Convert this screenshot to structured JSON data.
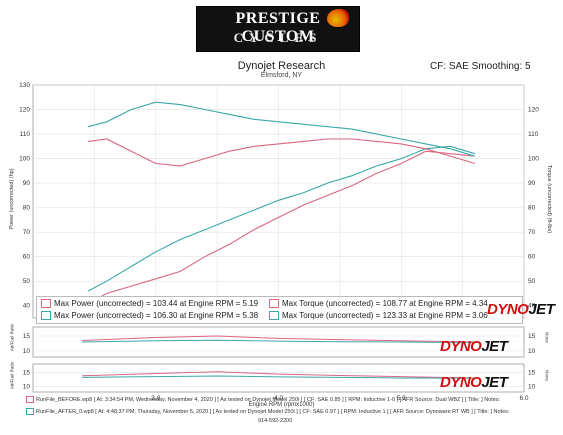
{
  "header": {
    "logo_line1": "PRESTIGE CUSTOM",
    "logo_line2": "CYCLES",
    "title": "Dynojet Research",
    "location": "Elmsford, NY",
    "cf_label": "CF: SAE Smoothing: 5"
  },
  "axes": {
    "y_left_label": "Power (uncorrected) (hp)",
    "y_right_label": "Torque (uncorrected) (ft-lbs)",
    "x_label": "Engine RPM (rpmx1000)",
    "afr_label": "Air/Fuel Ratio",
    "right_small_label": "None"
  },
  "legend": {
    "run1_power": "Max Power (uncorrected) = 103.44 at Engine RPM = 5.19",
    "run2_power": "Max Power (uncorrected) = 106.30 at Engine RPM = 5.38",
    "run1_torque": "Max Torque (uncorrected) = 108.77 at Engine RPM = 4.34",
    "run2_torque": "Max Torque (uncorrected) = 123.33 at Engine RPM = 3.06"
  },
  "brand": {
    "dyno": "DYNO",
    "jet": "JET"
  },
  "footer": {
    "run1": "RunFile_BEFORE.wp8 [ At: 3:34:54 PM, Wednesday, November 4, 2020 ] [ As tested on Dynojet Model 250i ] [ CF: SAE 0.85 ] [ RPM: Inductive 1-0 ] [ AFR Source: Dual WBZ ] [ Title: ] Notes:",
    "run2": "RunFile_AFTER_0.wp8 [ At: 4:48:37 PM, Thursday, November 5, 2020 ] [ As tested on Dynojet Model 250i ] [ CF: SAE 0.97 ] [ RPM: Inductive 1 ] [ AFR Source: Dynoware RT WB ] [ Title: ] Notes:",
    "phone": "914-592-2200"
  },
  "colors": {
    "run1": "#d9677f",
    "run2": "#3aa8a8",
    "grid": "#e2e2e2"
  },
  "chart_data": {
    "type": "line",
    "xlim": [
      2.0,
      6.0
    ],
    "y_left_lim": [
      35,
      130
    ],
    "y_left_ticks": [
      40,
      50,
      60,
      70,
      80,
      90,
      100,
      110,
      120,
      130
    ],
    "y_right_ticks": [
      40,
      50,
      60,
      70,
      80,
      90,
      100,
      110,
      120
    ],
    "x_ticks": [
      3.0,
      4.0,
      5.0,
      6.0
    ],
    "x_tick_labels": [
      "3.0",
      "4.0",
      "5.0",
      "6.0"
    ],
    "afr_ticks": [
      10,
      15
    ],
    "series": [
      {
        "run": 1,
        "quantity": "power",
        "x": [
          2.45,
          2.6,
          2.8,
          3.0,
          3.2,
          3.4,
          3.6,
          3.8,
          4.0,
          4.2,
          4.4,
          4.6,
          4.8,
          5.0,
          5.2,
          5.4,
          5.6
        ],
        "y": [
          41,
          45,
          48,
          51,
          54,
          60,
          65,
          71,
          76,
          81,
          85,
          89,
          94,
          98,
          103,
          102,
          101
        ]
      },
      {
        "run": 2,
        "quantity": "power",
        "x": [
          2.45,
          2.6,
          2.8,
          3.0,
          3.2,
          3.4,
          3.6,
          3.8,
          4.0,
          4.2,
          4.4,
          4.6,
          4.8,
          5.0,
          5.2,
          5.4,
          5.6
        ],
        "y": [
          46,
          50,
          56,
          62,
          67,
          71,
          75,
          79,
          83,
          86,
          90,
          93,
          97,
          100,
          104,
          105,
          102
        ]
      },
      {
        "run": 1,
        "quantity": "torque",
        "x": [
          2.45,
          2.6,
          2.8,
          3.0,
          3.2,
          3.4,
          3.6,
          3.8,
          4.0,
          4.2,
          4.4,
          4.6,
          4.8,
          5.0,
          5.2,
          5.4,
          5.6
        ],
        "y": [
          107,
          108,
          103,
          98,
          97,
          100,
          103,
          105,
          106,
          107,
          108,
          108,
          107,
          106,
          104,
          101,
          98
        ]
      },
      {
        "run": 2,
        "quantity": "torque",
        "x": [
          2.45,
          2.6,
          2.8,
          3.0,
          3.2,
          3.4,
          3.6,
          3.8,
          4.0,
          4.2,
          4.4,
          4.6,
          4.8,
          5.0,
          5.2,
          5.4,
          5.6
        ],
        "y": [
          113,
          115,
          120,
          123,
          122,
          120,
          118,
          116,
          115,
          114,
          113,
          112,
          110,
          108,
          106,
          104,
          101
        ]
      }
    ],
    "afr_series": [
      {
        "panel": 1,
        "run": 1,
        "x": [
          2.4,
          3.0,
          3.5,
          4.0,
          4.5,
          5.0,
          5.6
        ],
        "y": [
          13.5,
          14.5,
          15.0,
          14.2,
          13.8,
          13.4,
          13.0
        ]
      },
      {
        "panel": 1,
        "run": 2,
        "x": [
          2.4,
          3.0,
          3.5,
          4.0,
          4.5,
          5.0,
          5.6
        ],
        "y": [
          13.0,
          13.4,
          13.6,
          13.3,
          13.1,
          13.0,
          12.8
        ]
      },
      {
        "panel": 2,
        "run": 1,
        "x": [
          2.4,
          3.0,
          3.5,
          4.0,
          4.5,
          5.0,
          5.6
        ],
        "y": [
          13.8,
          14.6,
          15.2,
          14.4,
          13.9,
          13.5,
          13.0
        ]
      },
      {
        "panel": 2,
        "run": 2,
        "x": [
          2.4,
          3.0,
          3.5,
          4.0,
          4.5,
          5.0,
          5.6
        ],
        "y": [
          13.2,
          13.5,
          13.7,
          13.4,
          13.2,
          13.0,
          12.9
        ]
      }
    ]
  }
}
